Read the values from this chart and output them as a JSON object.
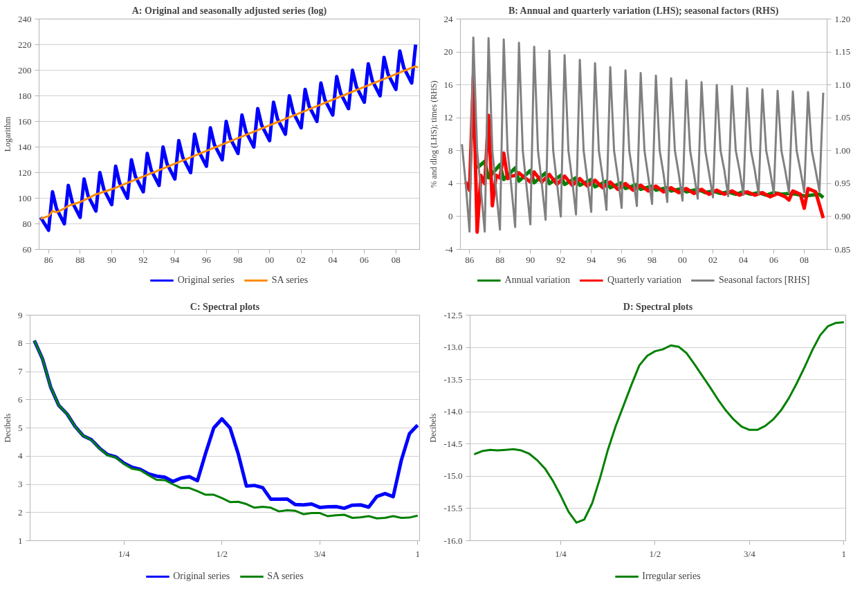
{
  "chart_data": [
    {
      "type": "line",
      "title": "A: Original and seasonally adjusted series (log)",
      "ylabel": "Logarithm",
      "xlim": [
        1985.4,
        2009.5
      ],
      "ylim": [
        60,
        240
      ],
      "xticks": [
        {
          "value": 1986,
          "label": "86"
        },
        {
          "value": 1988,
          "label": "88"
        },
        {
          "value": 1990,
          "label": "90"
        },
        {
          "value": 1992,
          "label": "92"
        },
        {
          "value": 1994,
          "label": "94"
        },
        {
          "value": 1996,
          "label": "96"
        },
        {
          "value": 1998,
          "label": "98"
        },
        {
          "value": 2000,
          "label": "00"
        },
        {
          "value": 2002,
          "label": "02"
        },
        {
          "value": 2004,
          "label": "04"
        },
        {
          "value": 2006,
          "label": "06"
        },
        {
          "value": 2008,
          "label": "08"
        }
      ],
      "yticks": [
        60,
        80,
        100,
        120,
        140,
        160,
        180,
        200,
        220,
        240
      ],
      "grid": "y",
      "legend": "bottom",
      "series": [
        {
          "name": "Original series",
          "color": "#0000ff",
          "x": [
            1985.5,
            1985.75,
            1986,
            1986.25,
            1986.5,
            1986.75,
            1987,
            1987.25,
            1987.5,
            1987.75,
            1988,
            1988.25,
            1988.5,
            1988.75,
            1989,
            1989.25,
            1989.5,
            1989.75,
            1990,
            1990.25,
            1990.5,
            1990.75,
            1991,
            1991.25,
            1991.5,
            1991.75,
            1992,
            1992.25,
            1992.5,
            1992.75,
            1993,
            1993.25,
            1993.5,
            1993.75,
            1994,
            1994.25,
            1994.5,
            1994.75,
            1995,
            1995.25,
            1995.5,
            1995.75,
            1996,
            1996.25,
            1996.5,
            1996.75,
            1997,
            1997.25,
            1997.5,
            1997.75,
            1998,
            1998.25,
            1998.5,
            1998.75,
            1999,
            1999.25,
            1999.5,
            1999.75,
            2000,
            2000.25,
            2000.5,
            2000.75,
            2001,
            2001.25,
            2001.5,
            2001.75,
            2002,
            2002.25,
            2002.5,
            2002.75,
            2003,
            2003.25,
            2003.5,
            2003.75,
            2004,
            2004.25,
            2004.5,
            2004.75,
            2005,
            2005.25,
            2005.5,
            2005.75,
            2006,
            2006.25,
            2006.5,
            2006.75,
            2007,
            2007.25,
            2007.5,
            2007.75,
            2008,
            2008.25,
            2008.5,
            2008.75,
            2009,
            2009.25
          ],
          "values": [
            85,
            80,
            75,
            105,
            92,
            86,
            80,
            110,
            97,
            91,
            85,
            115,
            102,
            96,
            90,
            120,
            107,
            101,
            95,
            125,
            112,
            106,
            100,
            130,
            117,
            111,
            105,
            135,
            122,
            116,
            110,
            140,
            127,
            121,
            115,
            145,
            132,
            126,
            120,
            150,
            137,
            131,
            125,
            155,
            142,
            136,
            130,
            160,
            147,
            141,
            135,
            165,
            152,
            146,
            140,
            170,
            157,
            151,
            145,
            175,
            162,
            156,
            150,
            180,
            167,
            161,
            155,
            185,
            172,
            166,
            160,
            190,
            177,
            171,
            165,
            195,
            182,
            176,
            170,
            200,
            187,
            181,
            175,
            205,
            192,
            186,
            180,
            210,
            197,
            191,
            185,
            215,
            202,
            196,
            190,
            220
          ]
        },
        {
          "name": "SA series",
          "color": "#ff8c00",
          "x": [
            1985.5,
            1986,
            1986.25,
            1986.5,
            1987,
            1987.25,
            1988,
            1989,
            1990,
            1991,
            1992,
            1993,
            1994,
            1995,
            1996,
            1997,
            1998,
            1999,
            2000,
            2001,
            2002,
            2003,
            2004,
            2005,
            2006,
            2007,
            2008,
            2009,
            2009.25,
            2009.4
          ],
          "values": [
            84,
            86,
            90,
            89,
            92,
            94,
            97,
            103,
            107,
            112,
            117,
            122,
            127,
            132,
            137,
            142,
            147,
            152,
            157,
            162,
            167,
            172,
            177,
            182,
            187,
            192,
            197,
            202,
            203,
            202
          ]
        }
      ]
    },
    {
      "type": "line",
      "title": "B: Annual and quarterly variation (LHS); seasonal factors (RHS)",
      "ylabel": "% and dlog (LHS); times (RHS)",
      "xlim": [
        1985.4,
        2009.5
      ],
      "ylim": [
        -4,
        24
      ],
      "y2lim": [
        0.85,
        1.2
      ],
      "xticks": [
        {
          "value": 1986,
          "label": "86"
        },
        {
          "value": 1988,
          "label": "88"
        },
        {
          "value": 1990,
          "label": "90"
        },
        {
          "value": 1992,
          "label": "92"
        },
        {
          "value": 1994,
          "label": "94"
        },
        {
          "value": 1996,
          "label": "96"
        },
        {
          "value": 1998,
          "label": "98"
        },
        {
          "value": 2000,
          "label": "00"
        },
        {
          "value": 2002,
          "label": "02"
        },
        {
          "value": 2004,
          "label": "04"
        },
        {
          "value": 2006,
          "label": "06"
        },
        {
          "value": 2008,
          "label": "08"
        }
      ],
      "yticks": [
        -4,
        0,
        4,
        8,
        12,
        16,
        20,
        24
      ],
      "y2ticks": [
        0.85,
        {
          "value": 0.9,
          "label": "0.90"
        },
        0.95,
        {
          "value": 1.0,
          "label": "1.00"
        },
        1.05,
        {
          "value": 1.1,
          "label": "1.10"
        },
        1.15,
        {
          "value": 1.2,
          "label": "1.20"
        }
      ],
      "grid": "y",
      "legend": "bottom",
      "series": [
        {
          "name": "Annual variation",
          "color": "#008000",
          "x": [
            1986.5,
            1987,
            1987.25,
            1988,
            1988.25,
            1989,
            1989.25,
            1990,
            1990.25,
            1991,
            1991.25,
            1992,
            1992.25,
            1993,
            1993.25,
            1994,
            1994.25,
            1995,
            1995.25,
            1996,
            1996.25,
            1997,
            1997.25,
            1998,
            1998.25,
            1999,
            1999.25,
            2000,
            2000.25,
            2001,
            2001.5,
            2002,
            2002.5,
            2003,
            2003.5,
            2004,
            2004.5,
            2005,
            2005.5,
            2006,
            2006.5,
            2007,
            2007.5,
            2008,
            2008.5,
            2009,
            2009.25
          ],
          "values": [
            5.9,
            6.7,
            4.7,
            6.3,
            4.5,
            5.9,
            4.3,
            5.6,
            4.1,
            5.3,
            4.0,
            5.0,
            3.9,
            4.7,
            3.8,
            4.5,
            3.6,
            4.3,
            3.5,
            4.1,
            3.4,
            3.9,
            3.3,
            3.7,
            3.2,
            3.5,
            3.1,
            3.4,
            3.0,
            3.3,
            2.9,
            3.1,
            2.8,
            3.0,
            2.7,
            3.0,
            2.7,
            2.9,
            2.6,
            2.9,
            2.7,
            2.8,
            2.7,
            2.5,
            2.6,
            2.7,
            2.3
          ]
        },
        {
          "name": "Quarterly variation",
          "color": "#ff0000",
          "x": [
            1985.75,
            1986,
            1986.25,
            1986.5,
            1986.75,
            1987,
            1987.25,
            1987.5,
            1987.75,
            1988,
            1988.25,
            1988.5,
            1988.75,
            1989,
            1989.25,
            1989.5,
            1990,
            1990.25,
            1990.75,
            1991.25,
            1991.75,
            1992.25,
            1992.75,
            1993.25,
            1993.75,
            1994.25,
            1994.75,
            1995.25,
            1995.75,
            1996.25,
            1996.75,
            1997.25,
            1997.75,
            1998.25,
            1998.75,
            1999.25,
            1999.75,
            2000.25,
            2000.75,
            2001.25,
            2001.75,
            2002.25,
            2002.75,
            2003.25,
            2003.75,
            2004.25,
            2004.75,
            2005.25,
            2005.75,
            2006.25,
            2006.75,
            2007,
            2007.25,
            2007.75,
            2008,
            2008.25,
            2008.75,
            2009.25
          ],
          "values": [
            4.2,
            3.2,
            17,
            -1.9,
            5.0,
            4.0,
            12.3,
            1.3,
            5.0,
            4.7,
            7.7,
            4.6,
            4.9,
            5.0,
            5.3,
            4.9,
            4.2,
            5.4,
            4.2,
            5.1,
            3.9,
            4.9,
            3.8,
            4.6,
            3.7,
            4.4,
            3.5,
            4.2,
            3.3,
            4.0,
            3.2,
            3.8,
            3.1,
            3.7,
            3.0,
            3.5,
            2.9,
            3.4,
            2.8,
            3.3,
            2.7,
            3.2,
            2.7,
            3.1,
            2.6,
            3.0,
            2.6,
            2.9,
            2.4,
            2.8,
            2.4,
            2.0,
            3.1,
            2.7,
            1.0,
            3.4,
            3.0,
            -0.2
          ]
        },
        {
          "name": "Seasonal factors [RHS]",
          "color": "#808080",
          "axis": "y2",
          "x": [
            1985.5,
            1985.75,
            1986,
            1986.25,
            1986.5,
            1986.75,
            1987,
            1987.25,
            1987.5,
            1987.75,
            1988,
            1988.25,
            1988.5,
            1988.75,
            1989,
            1989.25,
            1989.5,
            1989.75,
            1990,
            1990.25,
            1990.5,
            1990.75,
            1991,
            1991.25,
            1991.5,
            1991.75,
            1992,
            1992.25,
            1992.5,
            1992.75,
            1993,
            1993.25,
            1993.5,
            1993.75,
            1994,
            1994.25,
            1994.5,
            1994.75,
            1995,
            1995.25,
            1995.5,
            1995.75,
            1996,
            1996.25,
            1996.5,
            1996.75,
            1997,
            1997.25,
            1997.5,
            1997.75,
            1998,
            1998.25,
            1998.5,
            1998.75,
            1999,
            1999.25,
            1999.5,
            1999.75,
            2000,
            2000.25,
            2000.5,
            2000.75,
            2001,
            2001.25,
            2001.5,
            2001.75,
            2002,
            2002.25,
            2002.5,
            2002.75,
            2003,
            2003.25,
            2003.5,
            2003.75,
            2004,
            2004.25,
            2004.5,
            2004.75,
            2005,
            2005.25,
            2005.5,
            2005.75,
            2006,
            2006.25,
            2006.5,
            2006.75,
            2007,
            2007.25,
            2007.5,
            2007.75,
            2008,
            2008.25,
            2008.5,
            2008.75,
            2009,
            2009.25
          ],
          "values": [
            1.01,
            0.95,
            0.877,
            1.172,
            1.0,
            0.94,
            0.877,
            1.171,
            1.0,
            0.94,
            0.88,
            1.169,
            1.0,
            0.945,
            0.884,
            1.164,
            1.0,
            0.945,
            0.888,
            1.158,
            1.0,
            0.95,
            0.895,
            1.152,
            1.0,
            0.95,
            0.9,
            1.145,
            1.0,
            0.955,
            0.903,
            1.138,
            1.0,
            0.955,
            0.907,
            1.133,
            1.0,
            0.96,
            0.91,
            1.127,
            1.0,
            0.96,
            0.913,
            1.122,
            1.0,
            0.96,
            0.916,
            1.118,
            1.0,
            0.96,
            0.919,
            1.114,
            1.0,
            0.965,
            0.922,
            1.11,
            1.0,
            0.965,
            0.924,
            1.107,
            1.0,
            0.965,
            0.927,
            1.104,
            1.0,
            0.965,
            0.929,
            1.1,
            1.0,
            0.97,
            0.931,
            1.098,
            1.0,
            0.97,
            0.933,
            1.095,
            1.0,
            0.97,
            0.934,
            1.093,
            1.0,
            0.97,
            0.935,
            1.091,
            1.0,
            0.97,
            0.936,
            1.09,
            1.0,
            0.97,
            0.937,
            1.089,
            1.0,
            0.97,
            0.938,
            1.088
          ]
        }
      ]
    },
    {
      "type": "line",
      "title": "C: Spectral plots",
      "ylabel": "Decibels",
      "xlim": [
        0.01,
        1.005
      ],
      "ylim": [
        1,
        9
      ],
      "xticks": [
        {
          "value": 0.25,
          "label": "1/4"
        },
        {
          "value": 0.5,
          "label": "1/2"
        },
        {
          "value": 0.75,
          "label": "3/4"
        },
        1
      ],
      "yticks": [
        1,
        2,
        3,
        4,
        5,
        6,
        7,
        8,
        9
      ],
      "grid": "y",
      "legend": "bottom",
      "x": [
        0.0208,
        0.0417,
        0.0625,
        0.0833,
        0.1042,
        0.125,
        0.1458,
        0.1667,
        0.1875,
        0.2083,
        0.2292,
        0.25,
        0.2708,
        0.2917,
        0.3125,
        0.3333,
        0.3542,
        0.375,
        0.3958,
        0.4167,
        0.4375,
        0.4583,
        0.4792,
        0.5,
        0.5208,
        0.5417,
        0.5625,
        0.5833,
        0.6042,
        0.625,
        0.6458,
        0.6667,
        0.6875,
        0.7083,
        0.7292,
        0.75,
        0.7708,
        0.7917,
        0.8125,
        0.8333,
        0.8542,
        0.875,
        0.8958,
        0.9167,
        0.9375,
        0.9583,
        0.9792,
        1
      ],
      "series": [
        {
          "name": "Original series",
          "color": "#0000ff",
          "values": [
            8.1,
            7.45,
            6.45,
            5.8,
            5.5,
            5.05,
            4.72,
            4.58,
            4.28,
            4.05,
            3.97,
            3.75,
            3.6,
            3.53,
            3.37,
            3.29,
            3.25,
            3.1,
            3.22,
            3.27,
            3.13,
            4.1,
            5.0,
            5.32,
            5.0,
            4.08,
            2.94,
            2.96,
            2.88,
            2.47,
            2.47,
            2.48,
            2.28,
            2.27,
            2.3,
            2.18,
            2.2,
            2.21,
            2.15,
            2.26,
            2.27,
            2.19,
            2.57,
            2.67,
            2.56,
            3.85,
            4.8,
            5.1
          ]
        },
        {
          "name": "SA series",
          "color": "#008000",
          "values": [
            8.1,
            7.45,
            6.45,
            5.8,
            5.5,
            5.05,
            4.72,
            4.57,
            4.27,
            4.03,
            3.95,
            3.72,
            3.55,
            3.5,
            3.32,
            3.16,
            3.15,
            3.0,
            2.87,
            2.87,
            2.76,
            2.63,
            2.63,
            2.51,
            2.37,
            2.38,
            2.3,
            2.17,
            2.2,
            2.17,
            2.04,
            2.08,
            2.06,
            1.94,
            1.98,
            1.98,
            1.87,
            1.9,
            1.92,
            1.81,
            1.83,
            1.87,
            1.79,
            1.81,
            1.87,
            1.81,
            1.82,
            1.89
          ]
        }
      ]
    },
    {
      "type": "line",
      "title": "D: Spectral plots",
      "ylabel": "Decibels",
      "xlim": [
        0.01,
        1.005
      ],
      "ylim": [
        -16,
        -12.5
      ],
      "xticks": [
        {
          "value": 0.25,
          "label": "1/4"
        },
        {
          "value": 0.5,
          "label": "1/2"
        },
        {
          "value": 0.75,
          "label": "3/4"
        },
        1
      ],
      "yticks": [
        {
          "value": -16,
          "label": "-16.0"
        },
        -15.5,
        {
          "value": -15,
          "label": "-15.0"
        },
        -14.5,
        {
          "value": -14,
          "label": "-14.0"
        },
        -13.5,
        {
          "value": -13,
          "label": "-13.0"
        },
        -12.5
      ],
      "grid": "y",
      "legend": "bottom",
      "x": [
        0.0208,
        0.0417,
        0.0625,
        0.0833,
        0.1042,
        0.125,
        0.1458,
        0.1667,
        0.1875,
        0.2083,
        0.2292,
        0.25,
        0.2708,
        0.2917,
        0.3125,
        0.3333,
        0.3542,
        0.375,
        0.3958,
        0.4167,
        0.4375,
        0.4583,
        0.4792,
        0.5,
        0.5208,
        0.5417,
        0.5625,
        0.5833,
        0.6042,
        0.625,
        0.6458,
        0.6667,
        0.6875,
        0.7083,
        0.7292,
        0.75,
        0.7708,
        0.7917,
        0.8125,
        0.8333,
        0.8542,
        0.875,
        0.8958,
        0.9167,
        0.9375,
        0.9583,
        0.9792,
        1
      ],
      "series": [
        {
          "name": "Irregular series",
          "color": "#008000",
          "values": [
            -14.66,
            -14.61,
            -14.59,
            -14.6,
            -14.59,
            -14.58,
            -14.6,
            -14.65,
            -14.75,
            -14.88,
            -15.07,
            -15.3,
            -15.55,
            -15.72,
            -15.67,
            -15.42,
            -15.03,
            -14.59,
            -14.22,
            -13.9,
            -13.58,
            -13.28,
            -13.13,
            -13.06,
            -13.03,
            -12.97,
            -12.99,
            -13.09,
            -13.26,
            -13.44,
            -13.62,
            -13.81,
            -13.98,
            -14.12,
            -14.23,
            -14.28,
            -14.28,
            -14.22,
            -14.12,
            -13.98,
            -13.79,
            -13.56,
            -13.31,
            -13.04,
            -12.81,
            -12.67,
            -12.62,
            -12.61
          ]
        }
      ]
    }
  ]
}
